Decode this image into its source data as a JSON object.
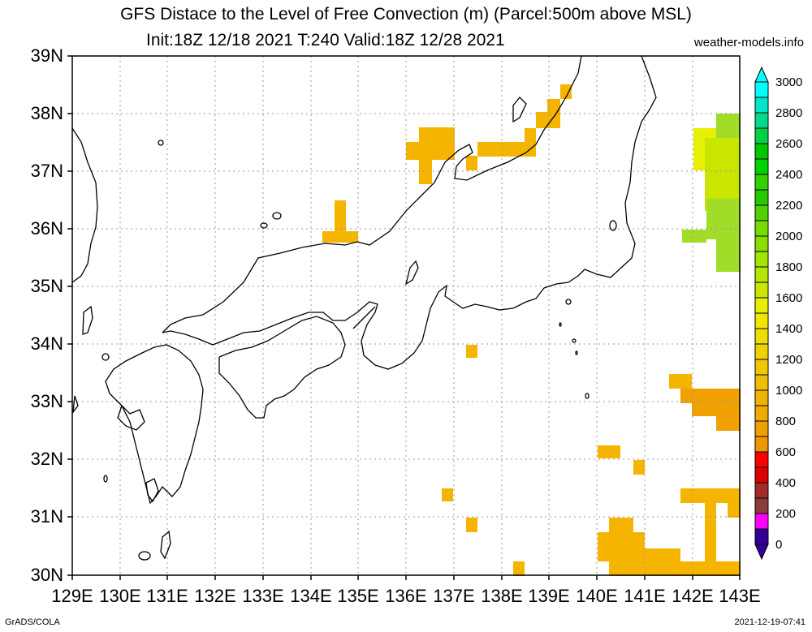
{
  "header": {
    "title": "GFS Distace to the Level of Free Convection (m) (Parcel:500m above MSL)",
    "subtitle": "Init:18Z 12/18 2021 T:240 Valid:18Z 12/28 2021",
    "site": "weather-models.info"
  },
  "footer": {
    "left": "GrADS/COLA",
    "right": "2021-12-19-07:41"
  },
  "map": {
    "lat_labels": [
      "39N",
      "38N",
      "37N",
      "36N",
      "35N",
      "34N",
      "33N",
      "32N",
      "31N",
      "30N"
    ],
    "lon_labels": [
      "129E",
      "130E",
      "131E",
      "132E",
      "133E",
      "134E",
      "135E",
      "136E",
      "137E",
      "138E",
      "139E",
      "140E",
      "141E",
      "142E",
      "143E"
    ],
    "lat_range": [
      30,
      39
    ],
    "lon_range": [
      129,
      143
    ],
    "grid": true
  },
  "colorbar": {
    "labels": [
      "3000",
      "2800",
      "2600",
      "2400",
      "2200",
      "2000",
      "1800",
      "1600",
      "1400",
      "1200",
      "1000",
      "800",
      "600",
      "400",
      "200",
      "0"
    ],
    "colors": [
      "#00ffff",
      "#00e6c8",
      "#00dc8c",
      "#00d246",
      "#00c800",
      "#32d200",
      "#78dc00",
      "#b4e600",
      "#e6f000",
      "#f0d200",
      "#f0b400",
      "#f09600",
      "#ff0000",
      "#a52a2a",
      "#ff00ff",
      "#320096",
      "#000064"
    ]
  },
  "colors": {
    "orange": "#f5b400",
    "amber": "#f0a000",
    "yellow": "#f0d200",
    "lime": "#c8e600",
    "green": "#a0dc28"
  }
}
